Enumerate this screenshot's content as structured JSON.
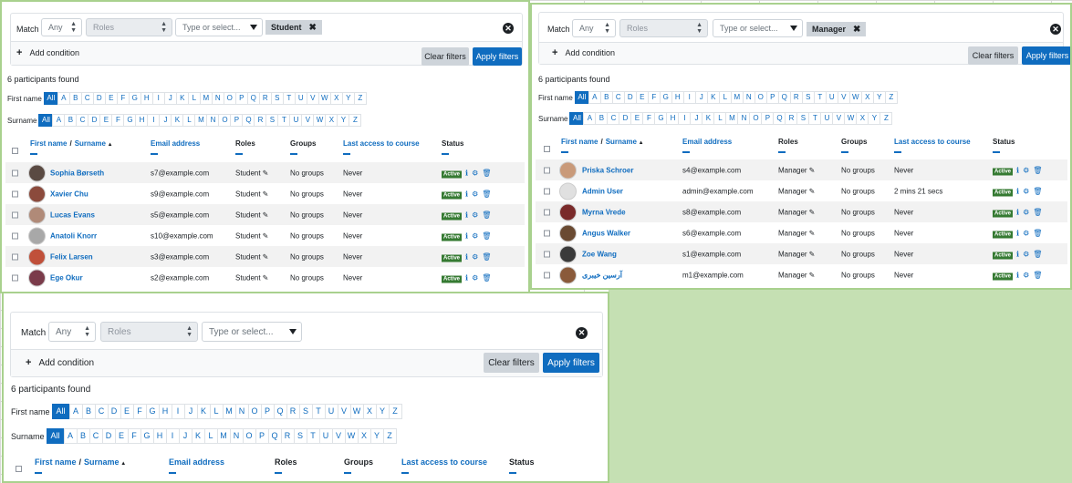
{
  "common": {
    "match_label": "Match",
    "match_value": "Any",
    "roles_placeholder": "Roles",
    "type_placeholder": "Type or select...",
    "add_condition": "Add condition",
    "clear_filters": "Clear filters",
    "apply_filters": "Apply filters",
    "participants_found": "6 participants found",
    "first_name_label": "First name",
    "surname_label": "Surname",
    "all": "All",
    "letters": [
      "A",
      "B",
      "C",
      "D",
      "E",
      "F",
      "G",
      "H",
      "I",
      "J",
      "K",
      "L",
      "M",
      "N",
      "O",
      "P",
      "Q",
      "R",
      "S",
      "T",
      "U",
      "V",
      "W",
      "X",
      "Y",
      "Z"
    ],
    "columns": {
      "first_name": "First name",
      "separator": "/",
      "surname": "Surname",
      "email": "Email address",
      "roles": "Roles",
      "groups": "Groups",
      "last_access": "Last access to course",
      "status": "Status"
    },
    "active_badge": "Active",
    "no_groups": "No groups"
  },
  "panel_student": {
    "tag": "Student",
    "rows": [
      {
        "name": "Sophia Børseth",
        "email": "s7@example.com",
        "role": "Student",
        "groups": "No groups",
        "access": "Never",
        "avatar_color": "#5a4a42"
      },
      {
        "name": "Xavier Chu",
        "email": "s9@example.com",
        "role": "Student",
        "groups": "No groups",
        "access": "Never",
        "avatar_color": "#8b4a3c"
      },
      {
        "name": "Lucas Evans",
        "email": "s5@example.com",
        "role": "Student",
        "groups": "No groups",
        "access": "Never",
        "avatar_color": "#b08a78"
      },
      {
        "name": "Anatoli Knorr",
        "email": "s10@example.com",
        "role": "Student",
        "groups": "No groups",
        "access": "Never",
        "avatar_color": "#a8a8a8"
      },
      {
        "name": "Felix Larsen",
        "email": "s3@example.com",
        "role": "Student",
        "groups": "No groups",
        "access": "Never",
        "avatar_color": "#c0503a"
      },
      {
        "name": "Ege Okur",
        "email": "s2@example.com",
        "role": "Student",
        "groups": "No groups",
        "access": "Never",
        "avatar_color": "#7a3b4a"
      }
    ]
  },
  "panel_manager": {
    "tag": "Manager",
    "rows": [
      {
        "name": "Priska Schroer",
        "email": "s4@example.com",
        "role": "Manager",
        "groups": "No groups",
        "access": "Never",
        "avatar_color": "#c99a7a"
      },
      {
        "name": "Admin User",
        "email": "admin@example.com",
        "role": "Manager",
        "groups": "No groups",
        "access": "2 mins 21 secs",
        "avatar_color": "#e0e0e0"
      },
      {
        "name": "Myrna Vrede",
        "email": "s8@example.com",
        "role": "Manager",
        "groups": "No groups",
        "access": "Never",
        "avatar_color": "#7a2a2a"
      },
      {
        "name": "Angus Walker",
        "email": "s6@example.com",
        "role": "Manager",
        "groups": "No groups",
        "access": "Never",
        "avatar_color": "#6a4a32"
      },
      {
        "name": "Zoe Wang",
        "email": "s1@example.com",
        "role": "Manager",
        "groups": "No groups",
        "access": "Never",
        "avatar_color": "#3a3a3a"
      },
      {
        "name": "آرسین خیبری",
        "email": "m1@example.com",
        "role": "Manager",
        "groups": "No groups",
        "access": "Never",
        "avatar_color": "#8a5a3a"
      }
    ]
  },
  "panel_empty": {}
}
